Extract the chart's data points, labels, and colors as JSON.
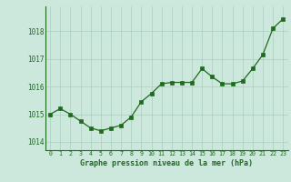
{
  "hours": [
    0,
    1,
    2,
    3,
    4,
    5,
    6,
    7,
    8,
    9,
    10,
    11,
    12,
    13,
    14,
    15,
    16,
    17,
    18,
    19,
    20,
    21,
    22,
    23
  ],
  "pressure": [
    1015.0,
    1015.2,
    1015.0,
    1014.75,
    1014.5,
    1014.4,
    1014.5,
    1014.6,
    1014.9,
    1015.45,
    1015.75,
    1016.1,
    1016.15,
    1016.15,
    1016.15,
    1016.65,
    1016.35,
    1016.1,
    1016.1,
    1016.2,
    1016.65,
    1017.15,
    1018.1,
    1018.45
  ],
  "line_color": "#1e6b1e",
  "marker_color": "#1e6b1e",
  "bg_color": "#cce8dc",
  "grid_color": "#aacfbe",
  "xlabel": "Graphe pression niveau de la mer (hPa)",
  "xlabel_color": "#1e6b1e",
  "tick_color": "#1e6b1e",
  "yticks": [
    1014,
    1015,
    1016,
    1017,
    1018
  ],
  "ylim": [
    1013.7,
    1018.9
  ],
  "xlim": [
    -0.5,
    23.5
  ]
}
